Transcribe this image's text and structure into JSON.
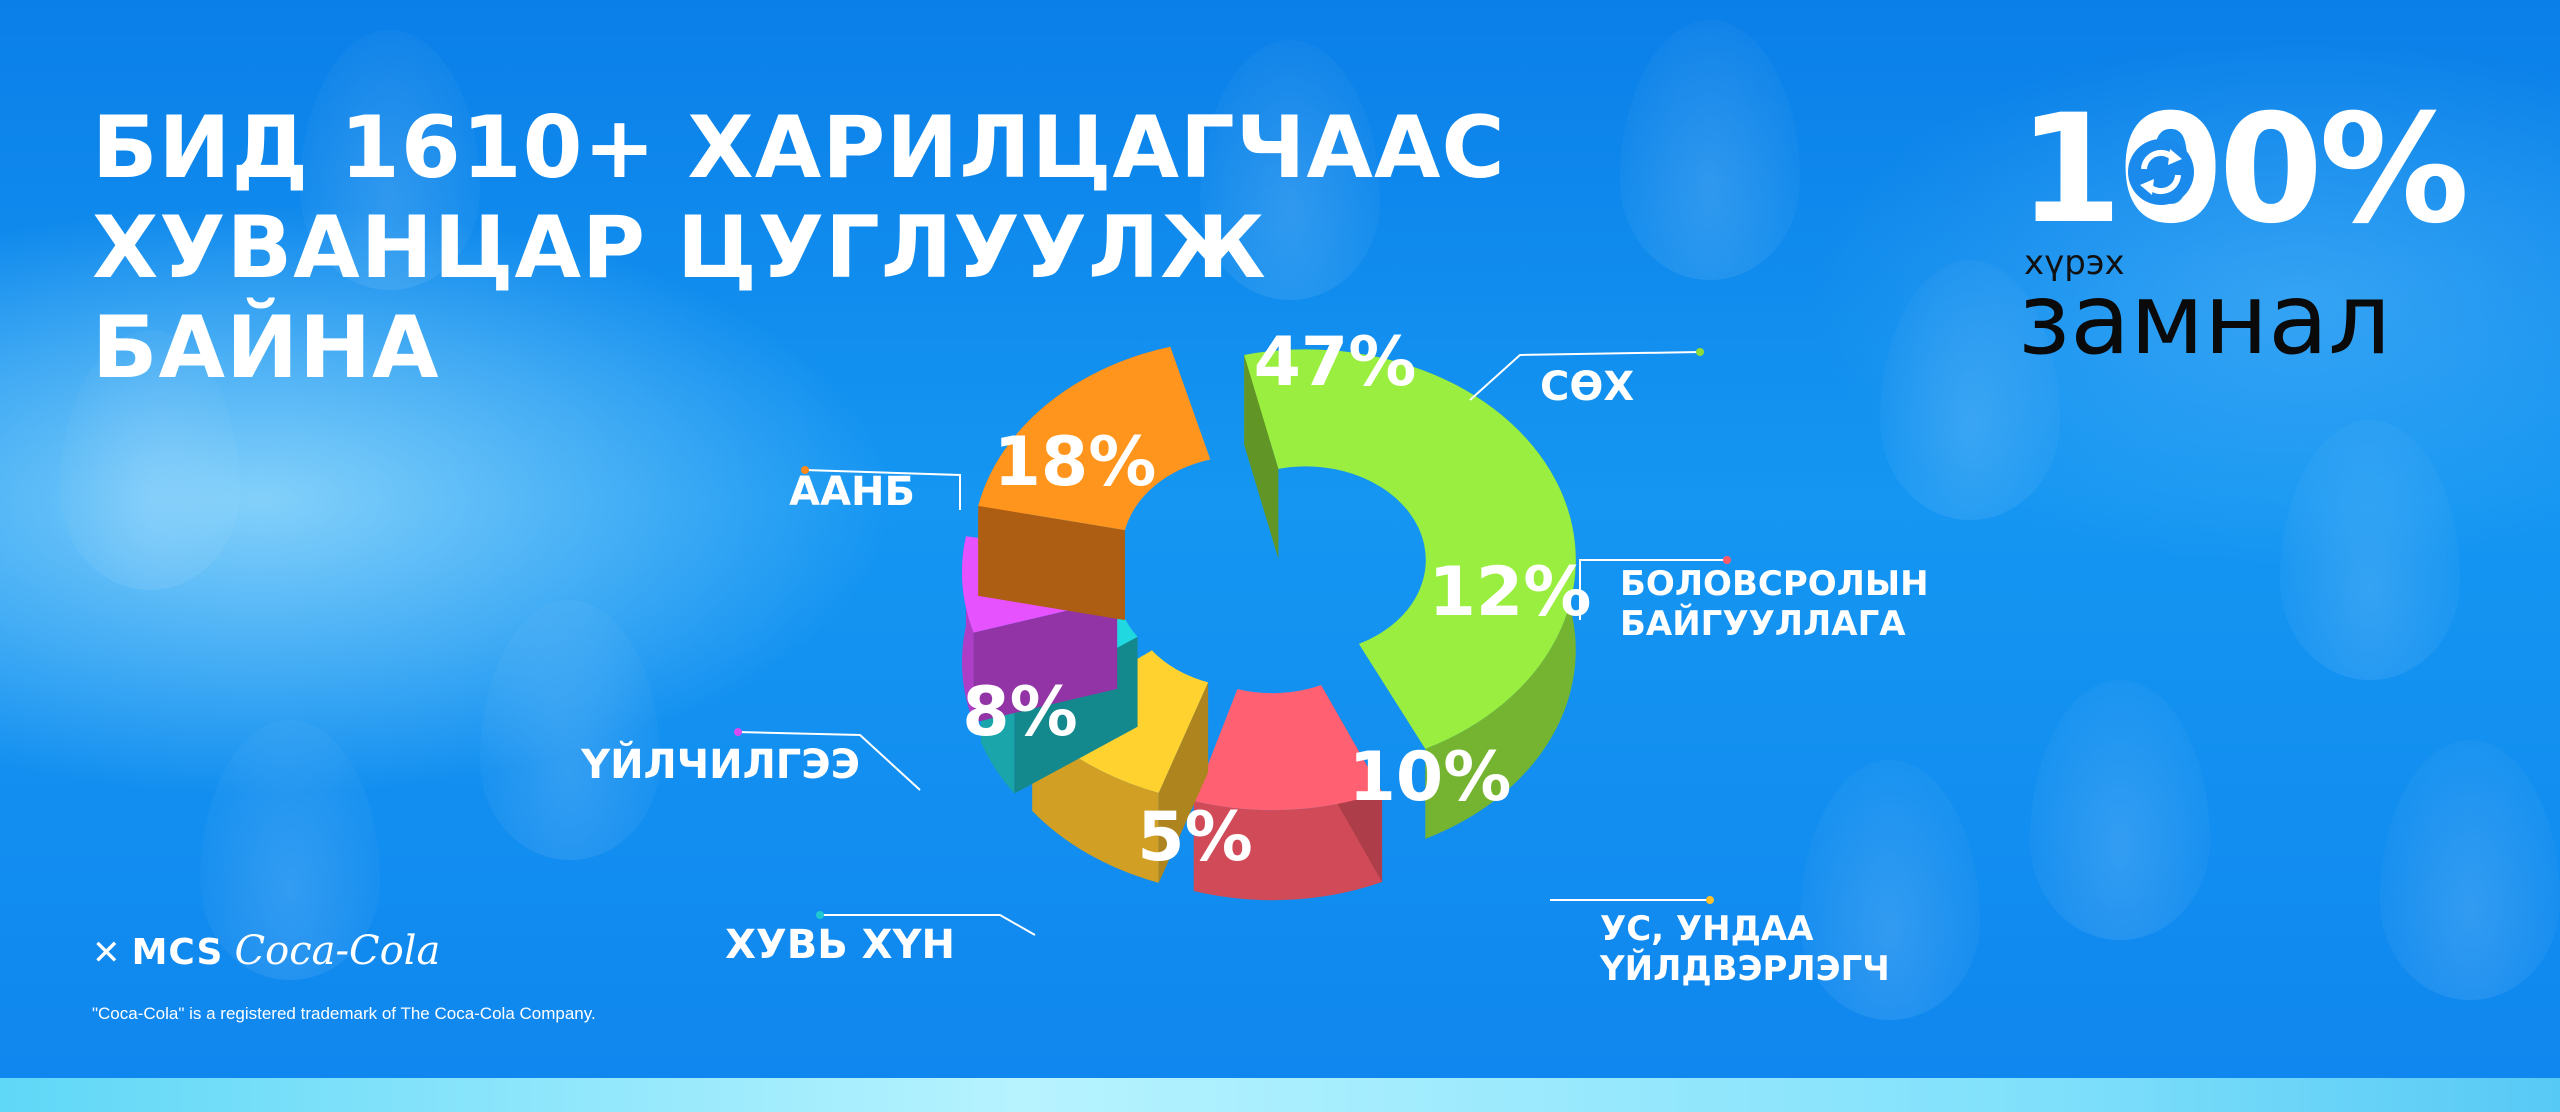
{
  "headline": {
    "line1": "БИД 1610+ ХАРИЛЦАГЧААС",
    "line2": "ХУВАНЦАР ЦУГЛУУЛЖ",
    "line3": "БАЙНА"
  },
  "logo": {
    "big_text": "100%",
    "small_text": "хүрэх",
    "word": "замнал"
  },
  "chart_data": {
    "type": "pie",
    "title": "",
    "slices": [
      {
        "label": "СӨХ",
        "value": 47,
        "value_label": "47%",
        "color": "#8fdc3a"
      },
      {
        "label": "БОЛОВСРОЛЫН БАЙГУУЛЛАГА",
        "value": 12,
        "value_label": "12%",
        "color": "#ff5a6a"
      },
      {
        "label": "УС, УНДАА ҮЙЛДВЭРЛЭГЧ",
        "value": 10,
        "value_label": "10%",
        "color": "#ffc22c"
      },
      {
        "label": "ХУВЬ ХҮН",
        "value": 5,
        "value_label": "5%",
        "color": "#1ec9cf"
      },
      {
        "label": "ҮЙЛЧИЛГЭЭ",
        "value": 8,
        "value_label": "8%",
        "color": "#d64cf2"
      },
      {
        "label": "ААНБ",
        "value": 18,
        "value_label": "18%",
        "color": "#ff8a1a"
      }
    ]
  },
  "brand": {
    "mcs": "MCS",
    "coke": "Coca-Cola",
    "trademark": "\"Coca-Cola\" is a registered trademark of The Coca-Cola Company."
  },
  "colors": {
    "background": "#0a8cf0",
    "text": "#ffffff"
  }
}
